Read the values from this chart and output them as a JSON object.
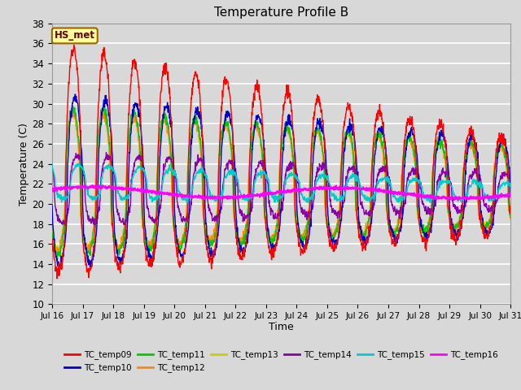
{
  "title": "Temperature Profile B",
  "xlabel": "Time",
  "ylabel": "Temperature (C)",
  "ylim": [
    10,
    38
  ],
  "yticks": [
    10,
    12,
    14,
    16,
    18,
    20,
    22,
    24,
    26,
    28,
    30,
    32,
    34,
    36,
    38
  ],
  "annotation_text": "HS_met",
  "annotation_bg": "#ffff99",
  "annotation_border": "#996600",
  "annotation_text_color": "#660000",
  "bg_color": "#d8d8d8",
  "plot_bg": "#d8d8d8",
  "grid_color": "#ffffff",
  "series_colors": {
    "TC_temp09": "#ff0000",
    "TC_temp10": "#0000cc",
    "TC_temp11": "#00cc00",
    "TC_temp12": "#ff8800",
    "TC_temp13": "#cccc00",
    "TC_temp14": "#8800aa",
    "TC_temp15": "#00cccc",
    "TC_temp16": "#ff00ff"
  },
  "xtick_labels": [
    "Jul 16",
    "Jul 17",
    "Jul 18",
    "Jul 19",
    "Jul 20",
    "Jul 21",
    "Jul 22",
    "Jul 23",
    "Jul 24",
    "Jul 25",
    "Jul 26",
    "Jul 27",
    "Jul 28",
    "Jul 29",
    "Jul 30",
    "Jul 31"
  ],
  "legend_order": [
    "TC_temp09",
    "TC_temp10",
    "TC_temp11",
    "TC_temp12",
    "TC_temp13",
    "TC_temp14",
    "TC_temp15",
    "TC_temp16"
  ]
}
